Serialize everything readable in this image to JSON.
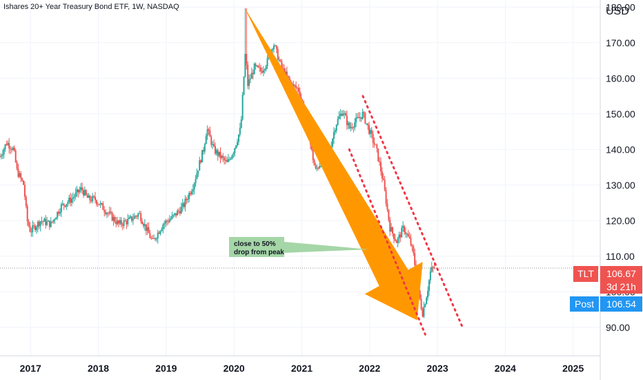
{
  "header": {
    "title": "Ishares 20+ Year Treasury Bond ETF, 1W, NASDAQ"
  },
  "axis": {
    "currency": "USD"
  },
  "badges": {
    "symbol": "TLT",
    "price": "106.67",
    "countdown": "3d 21h",
    "post_label": "Post",
    "post_price": "106.54"
  },
  "annotation": {
    "line1": "close to 50%",
    "line2": "drop from peak"
  },
  "colors": {
    "up": "#26a69a",
    "down": "#ef5350",
    "arrow": "#ff9800",
    "trend": "#f23645",
    "callout": "#a5d6a7",
    "post": "#2196f3",
    "grid": "#f0f3fa"
  },
  "chart_data": {
    "type": "candlestick",
    "title": "Ishares 20+ Year Treasury Bond ETF, 1W, NASDAQ",
    "ylabel": "USD",
    "ylim": [
      82,
      182
    ],
    "xlim": [
      2016.55,
      2025.4
    ],
    "x_ticks": [
      "2017",
      "2018",
      "2019",
      "2020",
      "2021",
      "2022",
      "2023",
      "2024",
      "2025"
    ],
    "y_ticks": [
      "90.00",
      "100.00",
      "110.00",
      "120.00",
      "130.00",
      "140.00",
      "150.00",
      "160.00",
      "170.00",
      "180.00"
    ],
    "price_path": [
      [
        2016.55,
        138
      ],
      [
        2016.65,
        142
      ],
      [
        2016.75,
        140
      ],
      [
        2016.8,
        134
      ],
      [
        2016.9,
        130
      ],
      [
        2016.95,
        120
      ],
      [
        2017.0,
        117
      ],
      [
        2017.15,
        120
      ],
      [
        2017.3,
        119
      ],
      [
        2017.45,
        124
      ],
      [
        2017.6,
        126
      ],
      [
        2017.75,
        129
      ],
      [
        2017.85,
        126
      ],
      [
        2017.95,
        126
      ],
      [
        2018.05,
        124
      ],
      [
        2018.15,
        122
      ],
      [
        2018.3,
        119
      ],
      [
        2018.45,
        120
      ],
      [
        2018.6,
        122
      ],
      [
        2018.7,
        118
      ],
      [
        2018.8,
        114
      ],
      [
        2018.95,
        119
      ],
      [
        2019.1,
        121
      ],
      [
        2019.25,
        124
      ],
      [
        2019.4,
        130
      ],
      [
        2019.55,
        140
      ],
      [
        2019.6,
        146
      ],
      [
        2019.7,
        140
      ],
      [
        2019.8,
        138
      ],
      [
        2019.9,
        136
      ],
      [
        2020.0,
        140
      ],
      [
        2020.1,
        146
      ],
      [
        2020.17,
        168
      ],
      [
        2020.2,
        158
      ],
      [
        2020.3,
        163
      ],
      [
        2020.4,
        162
      ],
      [
        2020.5,
        165
      ],
      [
        2020.58,
        170
      ],
      [
        2020.7,
        163
      ],
      [
        2020.85,
        158
      ],
      [
        2020.95,
        157
      ],
      [
        2021.05,
        150
      ],
      [
        2021.15,
        139
      ],
      [
        2021.2,
        134
      ],
      [
        2021.3,
        137
      ],
      [
        2021.4,
        139
      ],
      [
        2021.5,
        147
      ],
      [
        2021.6,
        151
      ],
      [
        2021.7,
        146
      ],
      [
        2021.8,
        148
      ],
      [
        2021.9,
        150
      ],
      [
        2022.0,
        145
      ],
      [
        2022.1,
        140
      ],
      [
        2022.2,
        131
      ],
      [
        2022.3,
        118
      ],
      [
        2022.4,
        114
      ],
      [
        2022.5,
        118
      ],
      [
        2022.6,
        114
      ],
      [
        2022.65,
        110
      ],
      [
        2022.72,
        100
      ],
      [
        2022.78,
        94
      ],
      [
        2022.85,
        100
      ],
      [
        2022.9,
        106
      ],
      [
        2022.96,
        107
      ]
    ],
    "peak": {
      "x": 2020.17,
      "y": 179.7
    },
    "last_price": 106.67,
    "post_price": 106.54,
    "annotations": [
      {
        "type": "arrow",
        "from": [
          2020.15,
          180
        ],
        "to": [
          2022.7,
          92
        ]
      },
      {
        "type": "trendline",
        "from": [
          2021.7,
          140
        ],
        "to": [
          2022.82,
          88
        ]
      },
      {
        "type": "trendline",
        "from": [
          2021.9,
          155
        ],
        "to": [
          2023.37,
          90
        ]
      },
      {
        "type": "callout",
        "text": "close to 50%\ndrop from peak",
        "at": [
          2019.9,
          117
        ]
      }
    ]
  }
}
